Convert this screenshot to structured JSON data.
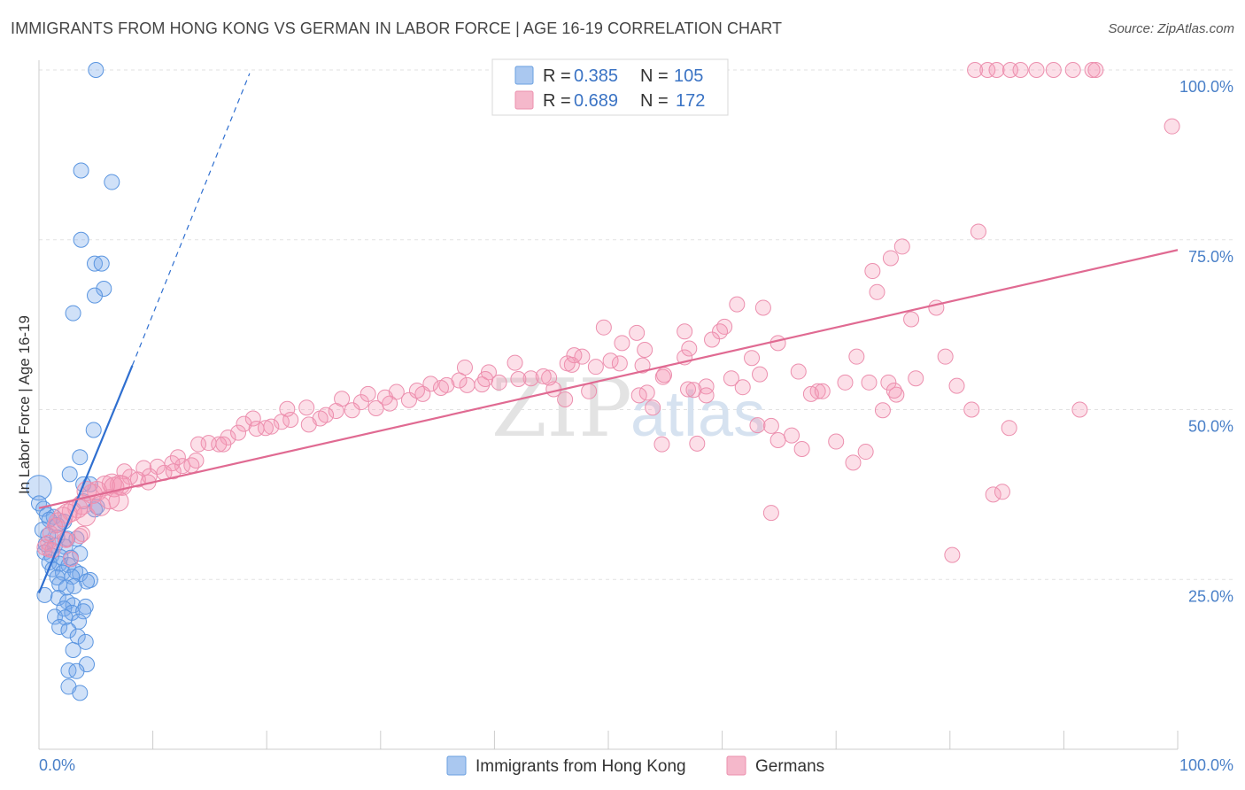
{
  "title": "IMMIGRANTS FROM HONG KONG VS GERMAN IN LABOR FORCE | AGE 16-19 CORRELATION CHART",
  "source": "Source: ZipAtlas.com",
  "watermark": {
    "zip": "ZIP",
    "atlas": "atlas"
  },
  "chart_data": {
    "type": "scatter",
    "xlabel": "",
    "ylabel": "In Labor Force | Age 16-19",
    "xlim": [
      0,
      100
    ],
    "ylim": [
      0,
      100
    ],
    "x_tick_labels": [
      "0.0%",
      "100.0%"
    ],
    "y_tick_labels": [
      {
        "value": 100,
        "label": "100.0%"
      },
      {
        "value": 75,
        "label": "75.0%"
      },
      {
        "value": 50,
        "label": "50.0%"
      },
      {
        "value": 25,
        "label": "25.0%"
      }
    ],
    "grid": true,
    "legend": {
      "position": "top-center",
      "rows": [
        {
          "r_label": "R =",
          "r_value": "0.385",
          "n_label": "N =",
          "n_value": "105",
          "color": "#aac8f0"
        },
        {
          "r_label": "R =",
          "r_value": "0.689",
          "n_label": "N =",
          "n_value": "172",
          "color": "#f5b8cb"
        }
      ]
    },
    "series": [
      {
        "name": "Immigrants from Hong Kong",
        "color": "#6a9fe0",
        "trend": {
          "x1": 0,
          "y1": 23,
          "x2": 8.2,
          "y2": 56.5,
          "x_ext": 18.5,
          "y_ext": 99.5,
          "color": "#2f6fd0"
        },
        "points": [
          [
            5,
            100
          ],
          [
            3.7,
            85.2
          ],
          [
            6.4,
            83.5
          ],
          [
            3.7,
            75
          ],
          [
            4.9,
            71.5
          ],
          [
            5.5,
            71.5
          ],
          [
            5.7,
            67.8
          ],
          [
            4.9,
            66.8
          ],
          [
            3,
            64.2
          ],
          [
            0,
            38.5
          ],
          [
            0,
            36.2
          ],
          [
            0.4,
            35.4
          ],
          [
            0.7,
            34.5
          ],
          [
            1.3,
            34.2
          ],
          [
            0.9,
            33.8
          ],
          [
            1.6,
            33
          ],
          [
            2.2,
            33.5
          ],
          [
            0.3,
            32.3
          ],
          [
            0.8,
            31.5
          ],
          [
            1.6,
            31.2
          ],
          [
            2.5,
            31
          ],
          [
            3.3,
            31
          ],
          [
            0.6,
            30.2
          ],
          [
            1.4,
            30
          ],
          [
            2.3,
            29.8
          ],
          [
            0.5,
            29
          ],
          [
            1.1,
            28.5
          ],
          [
            1.9,
            28.3
          ],
          [
            2.8,
            28.2
          ],
          [
            3.6,
            28.8
          ],
          [
            0.9,
            27.5
          ],
          [
            1.8,
            27.3
          ],
          [
            2.6,
            27.1
          ],
          [
            1.2,
            26.5
          ],
          [
            2.1,
            26
          ],
          [
            3.2,
            26.2
          ],
          [
            3.6,
            25.8
          ],
          [
            1.6,
            25.3
          ],
          [
            2.9,
            25.4
          ],
          [
            4.5,
            24.9
          ],
          [
            4.2,
            24.7
          ],
          [
            1.8,
            24.3
          ],
          [
            3.1,
            24
          ],
          [
            2.4,
            23.8
          ],
          [
            0.5,
            22.7
          ],
          [
            1.7,
            22.3
          ],
          [
            2.5,
            21.7
          ],
          [
            3,
            21.2
          ],
          [
            4.1,
            21
          ],
          [
            2.2,
            20.7
          ],
          [
            2.9,
            20.1
          ],
          [
            3.9,
            20.3
          ],
          [
            1.4,
            19.5
          ],
          [
            2.3,
            19.4
          ],
          [
            3.5,
            18.8
          ],
          [
            1.8,
            18
          ],
          [
            2.6,
            17.5
          ],
          [
            3.4,
            16.6
          ],
          [
            4.1,
            15.8
          ],
          [
            3,
            14.6
          ],
          [
            4.2,
            12.5
          ],
          [
            2.6,
            11.6
          ],
          [
            3.3,
            11.5
          ],
          [
            2.6,
            9.2
          ],
          [
            3.6,
            8.3
          ],
          [
            4.8,
            47
          ],
          [
            3.6,
            43
          ],
          [
            4.5,
            39
          ],
          [
            3.9,
            39
          ],
          [
            2.7,
            40.5
          ],
          [
            3.9,
            36.5
          ],
          [
            4.9,
            35.3
          ],
          [
            5.1,
            35.7
          ]
        ]
      },
      {
        "name": "Germans",
        "color": "#f08aaa",
        "trend": {
          "x1": 0,
          "y1": 35.5,
          "x2": 100,
          "y2": 73.5,
          "color": "#e06a92"
        },
        "points": [
          [
            82.2,
            100
          ],
          [
            83.3,
            100
          ],
          [
            84.1,
            100
          ],
          [
            85.3,
            100
          ],
          [
            86.2,
            100
          ],
          [
            87.6,
            100
          ],
          [
            89.1,
            100
          ],
          [
            90.8,
            100
          ],
          [
            92.5,
            100
          ],
          [
            92.8,
            100
          ],
          [
            99.5,
            91.7
          ],
          [
            82.5,
            76.2
          ],
          [
            75.8,
            74
          ],
          [
            74.8,
            72.3
          ],
          [
            73.2,
            70.4
          ],
          [
            73.6,
            67.3
          ],
          [
            78.8,
            65
          ],
          [
            76.6,
            63.3
          ],
          [
            61.3,
            65.5
          ],
          [
            63.6,
            65
          ],
          [
            60.2,
            62.2
          ],
          [
            59.8,
            61.5
          ],
          [
            56.7,
            57.7
          ],
          [
            59.1,
            60.3
          ],
          [
            57.1,
            59
          ],
          [
            56.7,
            61.5
          ],
          [
            53.2,
            58.8
          ],
          [
            52.5,
            61.3
          ],
          [
            49.6,
            62.1
          ],
          [
            51.2,
            59.8
          ],
          [
            53,
            56.5
          ],
          [
            54.8,
            54.8
          ],
          [
            57,
            53
          ],
          [
            58.6,
            53.4
          ],
          [
            60.8,
            54.6
          ],
          [
            61.8,
            53.3
          ],
          [
            62.6,
            57.6
          ],
          [
            63.3,
            55.2
          ],
          [
            64.9,
            59.8
          ],
          [
            66.7,
            55.6
          ],
          [
            68.4,
            52.7
          ],
          [
            70.8,
            54
          ],
          [
            71.8,
            57.8
          ],
          [
            72.9,
            54
          ],
          [
            74.6,
            54
          ],
          [
            75.3,
            52.2
          ],
          [
            77,
            54.6
          ],
          [
            79.6,
            57.8
          ],
          [
            80.6,
            53.5
          ],
          [
            81.9,
            50
          ],
          [
            83.8,
            37.5
          ],
          [
            84.6,
            37.9
          ],
          [
            80.2,
            28.6
          ],
          [
            85.2,
            47.3
          ],
          [
            91.4,
            50
          ],
          [
            75.1,
            52.8
          ],
          [
            74.1,
            49.9
          ],
          [
            72.6,
            43.8
          ],
          [
            71.5,
            42.2
          ],
          [
            70,
            45.3
          ],
          [
            66.1,
            46.2
          ],
          [
            67.8,
            52.3
          ],
          [
            68.8,
            52.7
          ],
          [
            64.3,
            47.6
          ],
          [
            63.1,
            47.7
          ],
          [
            64.9,
            45.5
          ],
          [
            67,
            44.2
          ],
          [
            64.3,
            34.8
          ],
          [
            57.8,
            45
          ],
          [
            54.7,
            44.9
          ],
          [
            58.6,
            52.1
          ],
          [
            57.5,
            52.9
          ],
          [
            53.4,
            52.5
          ],
          [
            54.9,
            55.1
          ],
          [
            50.2,
            57.2
          ],
          [
            48.9,
            56.3
          ],
          [
            47.7,
            57.8
          ],
          [
            46.8,
            56.6
          ],
          [
            46.2,
            51.5
          ],
          [
            45.2,
            53
          ],
          [
            43.2,
            54.6
          ],
          [
            42.1,
            54.5
          ],
          [
            44.8,
            54.7
          ],
          [
            47,
            58
          ],
          [
            48.3,
            52.7
          ],
          [
            51,
            56.8
          ],
          [
            52.7,
            52.1
          ],
          [
            53.9,
            50.3
          ],
          [
            40.4,
            54
          ],
          [
            39.5,
            55.5
          ],
          [
            38.9,
            53.7
          ],
          [
            37.6,
            53.6
          ],
          [
            36.9,
            54.3
          ],
          [
            35.8,
            53.6
          ],
          [
            34.4,
            53.8
          ],
          [
            33.7,
            52.3
          ],
          [
            32.5,
            51.4
          ],
          [
            31.4,
            52.6
          ],
          [
            30.8,
            50.9
          ],
          [
            29.6,
            50.2
          ],
          [
            28.3,
            51.1
          ],
          [
            27.5,
            49.9
          ],
          [
            26.1,
            49.8
          ],
          [
            25.2,
            49.2
          ],
          [
            24.7,
            48.7
          ],
          [
            23.7,
            47.8
          ],
          [
            22.1,
            48.5
          ],
          [
            21.3,
            48.2
          ],
          [
            20.4,
            47.5
          ],
          [
            19.9,
            47.3
          ],
          [
            18.8,
            48.7
          ],
          [
            18,
            47.9
          ],
          [
            17.5,
            46.6
          ],
          [
            16.6,
            45.9
          ],
          [
            15.8,
            44.9
          ],
          [
            14.9,
            45.1
          ],
          [
            14,
            44.9
          ],
          [
            13.8,
            42.5
          ],
          [
            12.6,
            41.7
          ],
          [
            11.7,
            42.1
          ],
          [
            11,
            40.7
          ],
          [
            10.4,
            41.6
          ],
          [
            9.7,
            40.2
          ],
          [
            9.2,
            41.4
          ],
          [
            8.7,
            39.7
          ],
          [
            8,
            40.1
          ],
          [
            7.5,
            40.9
          ],
          [
            7.1,
            38.9
          ],
          [
            6.4,
            39.1
          ],
          [
            5.8,
            38.8
          ],
          [
            5.1,
            38
          ],
          [
            4.7,
            37.6
          ],
          [
            4.2,
            38
          ],
          [
            3.8,
            36
          ],
          [
            3.4,
            35.5
          ],
          [
            2.9,
            35
          ],
          [
            2.5,
            34.7
          ],
          [
            2.1,
            34.2
          ],
          [
            1.7,
            33.4
          ],
          [
            1.4,
            32.9
          ],
          [
            1,
            31.8
          ],
          [
            0.8,
            30.4
          ],
          [
            0.5,
            29.7
          ],
          [
            2.4,
            30.8
          ],
          [
            3.8,
            31.7
          ],
          [
            0.9,
            29.4
          ],
          [
            12.2,
            43
          ],
          [
            13.4,
            41.8
          ],
          [
            16.2,
            44.9
          ],
          [
            19.1,
            47.2
          ],
          [
            21.8,
            50.1
          ],
          [
            23.5,
            50.3
          ],
          [
            26.6,
            51.6
          ],
          [
            28.9,
            52.3
          ],
          [
            30.4,
            51.8
          ],
          [
            33.2,
            52.8
          ],
          [
            35.3,
            53.2
          ],
          [
            37.4,
            56.2
          ],
          [
            39.2,
            54.5
          ],
          [
            41.8,
            56.9
          ],
          [
            44.3,
            54.9
          ],
          [
            46.4,
            56.8
          ],
          [
            9.6,
            39.3
          ],
          [
            11.8,
            40.9
          ],
          [
            6.6,
            38.6
          ],
          [
            7.3,
            38.8
          ],
          [
            5.4,
            35.8
          ],
          [
            7,
            36.5
          ],
          [
            4.1,
            34.3
          ],
          [
            6.2,
            36.8
          ],
          [
            2.3,
            30.9
          ],
          [
            3.6,
            31.4
          ],
          [
            1.2,
            29.3
          ],
          [
            2.8,
            28
          ]
        ]
      }
    ]
  },
  "bottom_legend": [
    {
      "label": "Immigrants from Hong Kong",
      "color": "#aac8f0"
    },
    {
      "label": "Germans",
      "color": "#f5b8cb"
    }
  ]
}
